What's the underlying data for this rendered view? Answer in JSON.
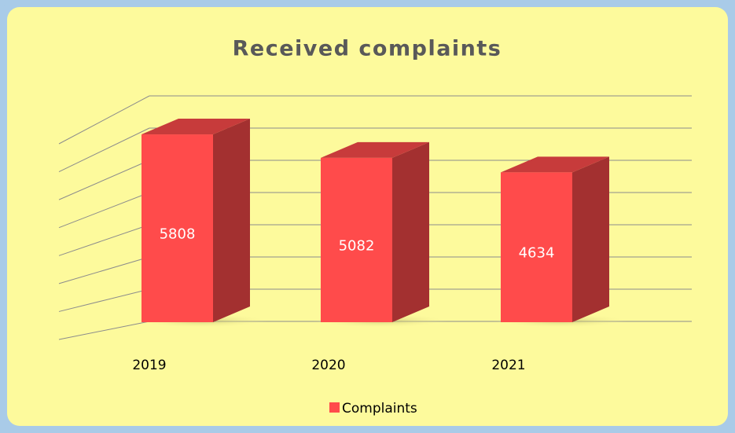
{
  "chart_data": {
    "type": "bar3d",
    "title": "Received complaints",
    "categories": [
      "2019",
      "2020",
      "2021"
    ],
    "series": [
      {
        "name": "Complaints",
        "color": "#ff4b4b",
        "values": [
          5808,
          5082,
          4634
        ]
      }
    ],
    "ylim": [
      0,
      7000
    ],
    "yticks": [
      0,
      1000,
      2000,
      3000,
      4000,
      5000,
      6000,
      7000
    ],
    "grid": true,
    "legend": "bottom"
  }
}
